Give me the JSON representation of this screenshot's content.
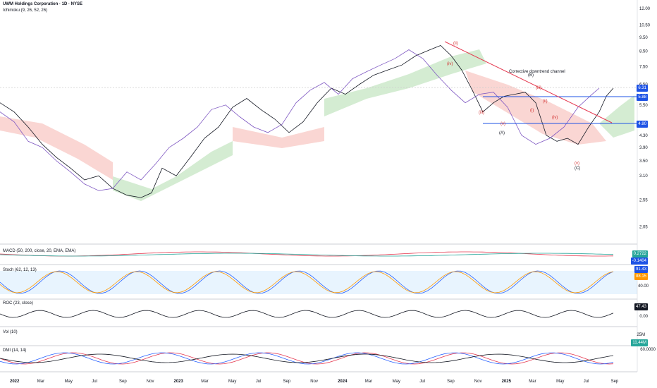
{
  "header": {
    "title": "UWM Holdings Corporation · 1D · NYSE",
    "indicator": "Ichimoku (9, 26, 52, 26)"
  },
  "chart_data": {
    "type": "line",
    "title": "UWM Holdings Corporation · 1D · NYSE",
    "price_axis_scale": "log",
    "price_ticks": [
      "12.00",
      "10.50",
      "9.50",
      "8.50",
      "7.50",
      "6.50",
      "5.50",
      "4.30",
      "3.90",
      "3.50",
      "3.10",
      "2.55",
      "2.05"
    ],
    "x_ticks": [
      "2022",
      "Mar",
      "May",
      "Jul",
      "Sep",
      "Nov",
      "2023",
      "Mar",
      "May",
      "Jul",
      "Sep",
      "Nov",
      "2024",
      "Mar",
      "May",
      "Jul",
      "Sep",
      "Nov",
      "2025",
      "Mar",
      "May",
      "Jul",
      "Sep"
    ],
    "price_tags": [
      {
        "label": "6.31",
        "color": "#1e53e5"
      },
      {
        "label": "5.88",
        "color": "#1e53e5"
      },
      {
        "label": "4.80",
        "color": "#1e53e5"
      }
    ],
    "annotations": {
      "channel_label": "Corrective downtrend channel",
      "waves_red": [
        "(ii)",
        "(iv)",
        "(iii)",
        "(v)",
        "(iii)",
        "(i)",
        "(iv)",
        "(v)",
        "(ii)",
        "(i)",
        "(ii)"
      ],
      "waves_black": [
        "(A)",
        "(B)",
        "(C)"
      ]
    },
    "series": [
      {
        "name": "Price",
        "points": [
          [
            0,
            5.6
          ],
          [
            20,
            5.2
          ],
          [
            40,
            4.6
          ],
          [
            60,
            4.0
          ],
          [
            80,
            3.6
          ],
          [
            100,
            3.3
          ],
          [
            120,
            3.0
          ],
          [
            140,
            3.1
          ],
          [
            160,
            2.8
          ],
          [
            180,
            2.65
          ],
          [
            200,
            2.6
          ],
          [
            215,
            2.7
          ],
          [
            230,
            3.3
          ],
          [
            250,
            3.1
          ],
          [
            270,
            3.6
          ],
          [
            290,
            4.2
          ],
          [
            310,
            4.6
          ],
          [
            330,
            5.4
          ],
          [
            350,
            5.8
          ],
          [
            370,
            5.3
          ],
          [
            390,
            4.9
          ],
          [
            410,
            4.4
          ],
          [
            430,
            4.8
          ],
          [
            450,
            5.6
          ],
          [
            470,
            6.3
          ],
          [
            490,
            6.0
          ],
          [
            510,
            6.5
          ],
          [
            530,
            7.0
          ],
          [
            550,
            7.3
          ],
          [
            570,
            7.6
          ],
          [
            590,
            8.2
          ],
          [
            610,
            8.6
          ],
          [
            625,
            8.9
          ],
          [
            640,
            8.2
          ],
          [
            655,
            7.3
          ],
          [
            670,
            6.2
          ],
          [
            685,
            5.2
          ],
          [
            700,
            5.6
          ],
          [
            715,
            5.9
          ],
          [
            730,
            6.0
          ],
          [
            745,
            6.1
          ],
          [
            760,
            5.6
          ],
          [
            775,
            4.3
          ],
          [
            790,
            4.1
          ],
          [
            805,
            4.2
          ],
          [
            820,
            4.0
          ],
          [
            835,
            4.6
          ],
          [
            850,
            5.2
          ],
          [
            860,
            5.9
          ],
          [
            870,
            6.3
          ]
        ]
      },
      {
        "name": "Lagging",
        "points": [
          [
            0,
            5.2
          ],
          [
            20,
            4.8
          ],
          [
            40,
            4.1
          ],
          [
            60,
            3.9
          ],
          [
            80,
            3.5
          ],
          [
            100,
            3.2
          ],
          [
            120,
            2.9
          ],
          [
            140,
            2.75
          ],
          [
            160,
            2.8
          ],
          [
            180,
            3.2
          ],
          [
            200,
            3.0
          ],
          [
            220,
            3.4
          ],
          [
            240,
            3.9
          ],
          [
            260,
            4.2
          ],
          [
            280,
            4.6
          ],
          [
            300,
            5.3
          ],
          [
            320,
            5.5
          ],
          [
            340,
            5.0
          ],
          [
            360,
            4.6
          ],
          [
            380,
            4.4
          ],
          [
            400,
            4.7
          ],
          [
            420,
            5.6
          ],
          [
            440,
            6.2
          ],
          [
            460,
            6.6
          ],
          [
            480,
            6.0
          ],
          [
            500,
            6.8
          ],
          [
            520,
            7.2
          ],
          [
            540,
            7.6
          ],
          [
            560,
            8.0
          ],
          [
            580,
            8.6
          ],
          [
            600,
            8.0
          ],
          [
            620,
            7.0
          ],
          [
            640,
            6.2
          ],
          [
            660,
            5.6
          ],
          [
            680,
            6.0
          ],
          [
            700,
            6.1
          ],
          [
            720,
            5.4
          ],
          [
            740,
            4.3
          ],
          [
            760,
            4.0
          ],
          [
            780,
            4.2
          ],
          [
            800,
            4.6
          ],
          [
            820,
            5.4
          ],
          [
            840,
            6.0
          ],
          [
            850,
            6.3
          ]
        ]
      }
    ],
    "panels": [
      {
        "name": "MACD",
        "label": "MACD (50, 200, close, 20, EMA, EMA)",
        "values_shown": [
          "0.2722",
          "-0.1404"
        ],
        "tag_colors": [
          "#26a69a",
          "#1e53e5"
        ]
      },
      {
        "name": "Stoch",
        "label": "Stoch (62, 12, 13)",
        "values_shown": [
          "91.43",
          "88.15"
        ],
        "levels": [
          "80.00",
          "40.00"
        ],
        "tag_colors": [
          "#1e53e5",
          "#ff9800"
        ]
      },
      {
        "name": "ROC",
        "label": "ROC (23, close)",
        "values_shown": [
          "47.43"
        ],
        "levels": [
          "0.00"
        ],
        "tag_colors": [
          "#131722"
        ]
      },
      {
        "name": "Vol",
        "label": "Vol (10)",
        "values_shown": [
          "11.44M"
        ],
        "levels": [
          "25M"
        ],
        "tag_colors": [
          "#26a69a"
        ]
      },
      {
        "name": "DMI",
        "label": "DMI (14, 14)",
        "values_shown": [],
        "levels": [
          "60.0000"
        ],
        "tag_colors": []
      }
    ]
  }
}
